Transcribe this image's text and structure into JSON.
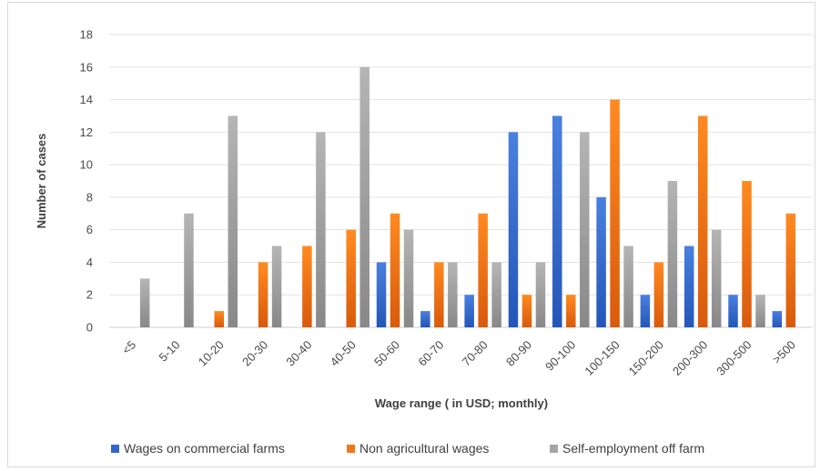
{
  "chart_data": {
    "type": "bar",
    "xlabel": "Wage range ( in USD; monthly)",
    "ylabel": "Number of cases",
    "ylim": [
      0,
      18
    ],
    "yticks": [
      0,
      2,
      4,
      6,
      8,
      10,
      12,
      14,
      16,
      18
    ],
    "grid": true,
    "legend_position": "bottom",
    "categories": [
      "<5",
      "5-10",
      "10-20",
      "20-30",
      "30-40",
      "40-50",
      "50-60",
      "60-70",
      "70-80",
      "80-90",
      "90-100",
      "100-150",
      "150-200",
      "200-300",
      "300-500",
      ">500"
    ],
    "series": [
      {
        "name": "Wages on commercial farms",
        "color": "#3366cc",
        "values": [
          0,
          0,
          0,
          0,
          0,
          0,
          4,
          1,
          2,
          12,
          13,
          8,
          2,
          5,
          2,
          1
        ]
      },
      {
        "name": "Non agricultural wages",
        "color": "#f07818",
        "values": [
          0,
          0,
          1,
          4,
          5,
          6,
          7,
          4,
          7,
          2,
          2,
          14,
          4,
          13,
          9,
          7
        ]
      },
      {
        "name": "Self-employment off farm",
        "color": "#a6a6a6",
        "values": [
          3,
          7,
          13,
          5,
          12,
          16,
          6,
          4,
          4,
          4,
          12,
          5,
          9,
          6,
          2,
          0
        ]
      }
    ]
  }
}
